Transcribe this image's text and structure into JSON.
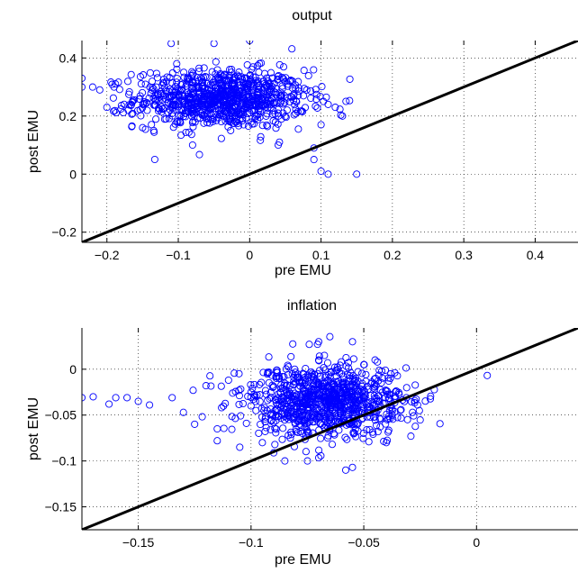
{
  "chart_data": [
    {
      "type": "scatter",
      "title": "output",
      "xlabel": "pre EMU",
      "ylabel": "post EMU",
      "xlim": [
        -0.235,
        0.46
      ],
      "ylim": [
        -0.235,
        0.46
      ],
      "xticks": [
        -0.2,
        -0.1,
        0,
        0.1,
        0.2,
        0.3,
        0.4
      ],
      "xtick_labels": [
        "−0.2",
        "−0.1",
        "0",
        "0.1",
        "0.2",
        "0.3",
        "0.4"
      ],
      "yticks": [
        -0.2,
        0,
        0.2,
        0.4
      ],
      "ytick_labels": [
        "−0.2",
        "0",
        "0.2",
        "0.4"
      ],
      "grid": true,
      "marker_color": "#0000ff",
      "reference_line": {
        "type": "identity",
        "color": "#000000"
      },
      "cluster": {
        "center": [
          -0.04,
          0.26
        ],
        "spread": [
          0.06,
          0.05
        ],
        "n": 900
      },
      "outliers": [
        [
          -0.235,
          0.33
        ],
        [
          -0.235,
          0.3
        ],
        [
          -0.22,
          0.3
        ],
        [
          -0.2,
          0.23
        ],
        [
          -0.21,
          0.29
        ],
        [
          -0.19,
          0.3
        ],
        [
          -0.17,
          0.22
        ],
        [
          0.09,
          0.09
        ],
        [
          0.09,
          0.05
        ],
        [
          0.1,
          0.01
        ],
        [
          0.11,
          0.0
        ],
        [
          0.15,
          0.0
        ],
        [
          0.1,
          0.17
        ],
        [
          0.12,
          0.23
        ],
        [
          0.13,
          0.2
        ],
        [
          -0.11,
          0.45
        ],
        [
          -0.05,
          0.45
        ],
        [
          0.04,
          0.1
        ],
        [
          0.08,
          0.29
        ],
        [
          -0.15,
          0.16
        ],
        [
          0.0,
          0.46
        ],
        [
          0.06,
          0.32
        ],
        [
          -0.08,
          0.1
        ],
        [
          0.11,
          0.24
        ]
      ]
    },
    {
      "type": "scatter",
      "title": "inflation",
      "xlabel": "pre EMU",
      "ylabel": "post EMU",
      "xlim": [
        -0.175,
        0.045
      ],
      "ylim": [
        -0.175,
        0.045
      ],
      "xticks": [
        -0.15,
        -0.1,
        -0.05,
        0
      ],
      "xtick_labels": [
        "−0.15",
        "−0.1",
        "−0.05",
        "0"
      ],
      "yticks": [
        -0.15,
        -0.1,
        -0.05,
        0
      ],
      "ytick_labels": [
        "−0.15",
        "−0.1",
        "−0.05",
        "0"
      ],
      "grid": true,
      "marker_color": "#0000ff",
      "reference_line": {
        "type": "identity",
        "color": "#000000"
      },
      "cluster": {
        "center": [
          -0.068,
          -0.035
        ],
        "spread": [
          0.018,
          0.02
        ],
        "n": 900
      },
      "outliers": [
        [
          -0.175,
          -0.031
        ],
        [
          -0.17,
          -0.03
        ],
        [
          -0.163,
          -0.038
        ],
        [
          -0.16,
          -0.031
        ],
        [
          -0.155,
          -0.031
        ],
        [
          -0.15,
          -0.035
        ],
        [
          -0.145,
          -0.039
        ],
        [
          -0.135,
          -0.031
        ],
        [
          -0.13,
          -0.047
        ],
        [
          -0.12,
          -0.018
        ],
        [
          -0.125,
          -0.06
        ],
        [
          -0.115,
          -0.065
        ],
        [
          -0.115,
          -0.078
        ],
        [
          -0.105,
          -0.085
        ],
        [
          -0.11,
          -0.012
        ],
        [
          -0.07,
          0.01
        ],
        [
          -0.06,
          0.008
        ],
        [
          -0.05,
          0.005
        ],
        [
          -0.07,
          0.03
        ],
        [
          -0.055,
          0.03
        ],
        [
          -0.058,
          -0.11
        ],
        [
          -0.055,
          -0.107
        ],
        [
          -0.075,
          -0.1
        ],
        [
          -0.085,
          -0.1
        ],
        [
          -0.04,
          -0.08
        ],
        [
          -0.1,
          -0.04
        ],
        [
          -0.1,
          -0.025
        ],
        [
          -0.095,
          -0.08
        ],
        [
          -0.045,
          0.01
        ],
        [
          -0.038,
          -0.005
        ]
      ]
    }
  ]
}
